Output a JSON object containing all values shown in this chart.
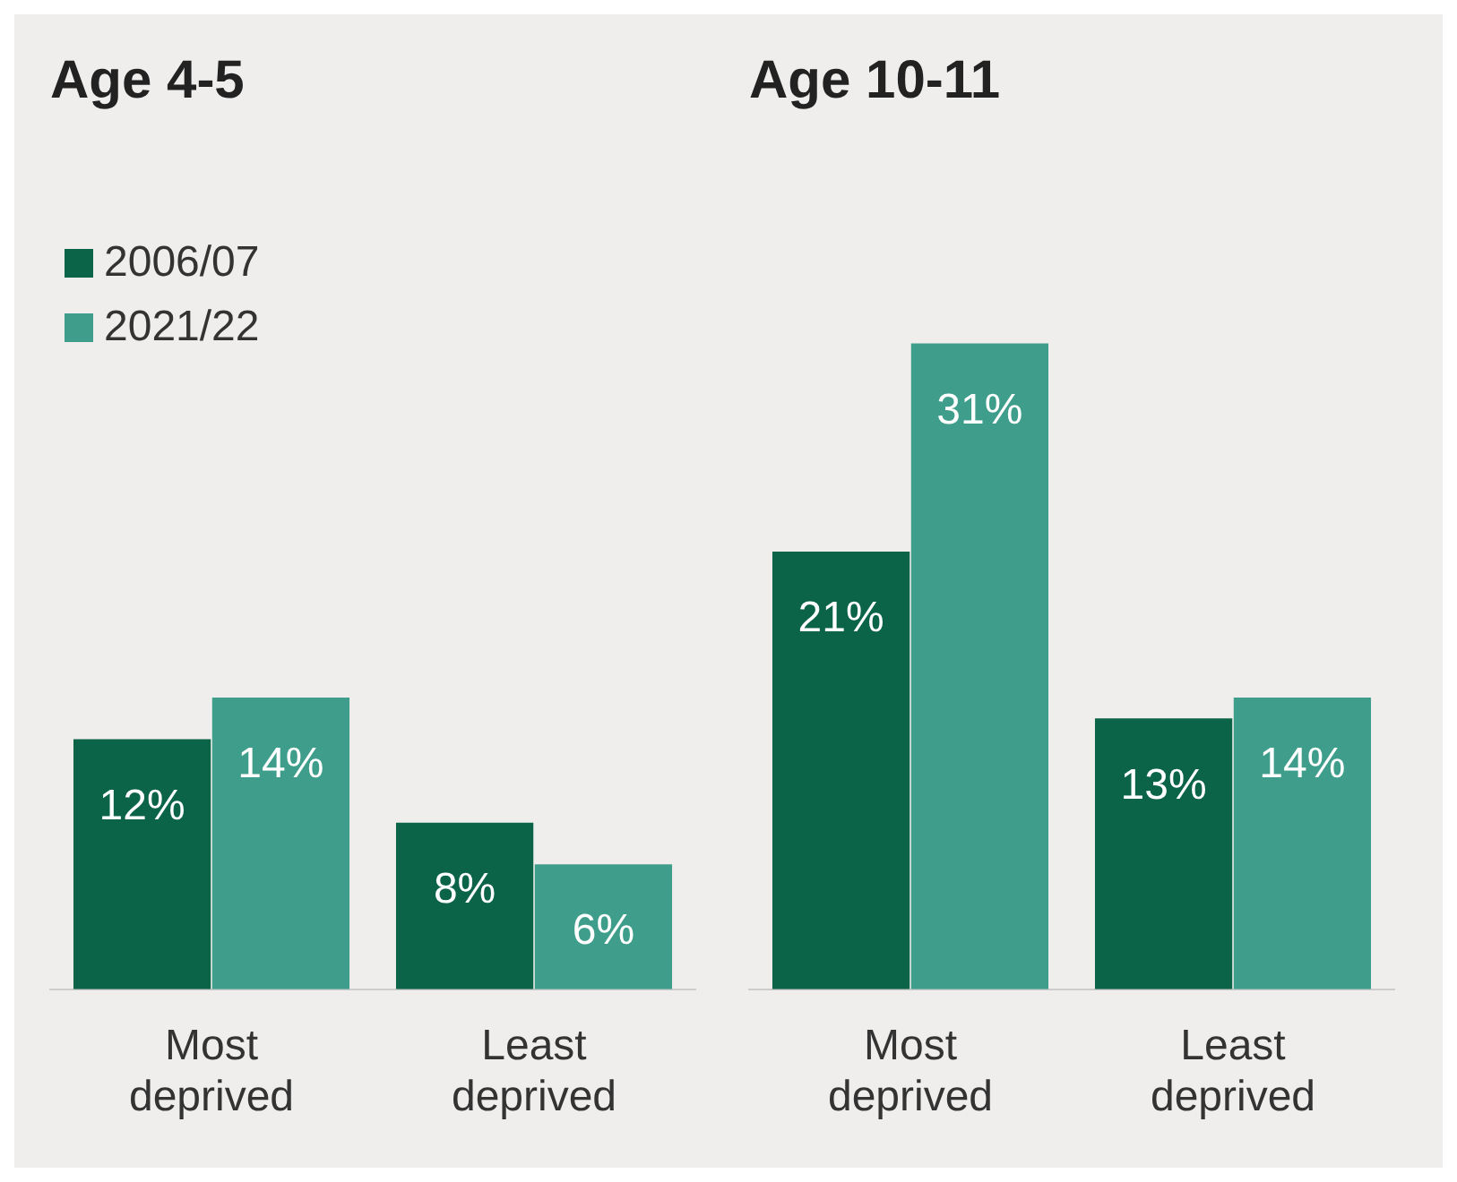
{
  "chart_data": [
    {
      "type": "bar",
      "title": "Age 4-5",
      "categories": [
        "Most deprived",
        "Least deprived"
      ],
      "legend": "top left",
      "series": [
        {
          "name": "2006/07",
          "color": "#0b6348",
          "values": [
            12,
            8
          ],
          "value_labels": [
            "12%",
            "8%"
          ]
        },
        {
          "name": "2021/22",
          "color": "#3f9e8b",
          "values": [
            14,
            6
          ],
          "value_labels": [
            "14%",
            "6%"
          ]
        }
      ]
    },
    {
      "type": "bar",
      "title": "Age 10-11",
      "categories": [
        "Most deprived",
        "Least deprived"
      ],
      "series": [
        {
          "color": "#0b6348",
          "values": [
            21,
            13
          ],
          "value_labels": [
            "21%",
            "13%"
          ]
        },
        {
          "color": "#3f9e8b",
          "values": [
            31,
            14
          ],
          "value_labels": [
            "31%",
            "14%"
          ]
        }
      ]
    }
  ]
}
